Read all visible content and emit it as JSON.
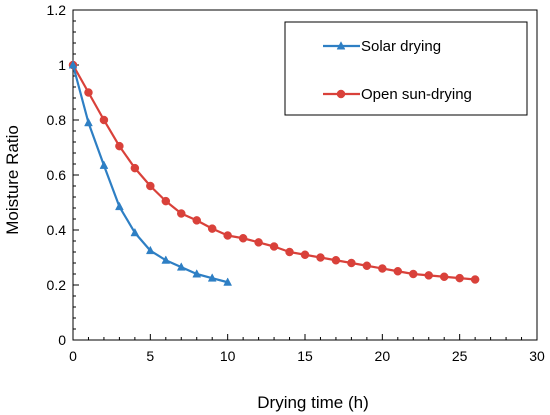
{
  "chart_data": {
    "type": "line",
    "title": "",
    "xlabel": "Drying time (h)",
    "ylabel": "Moisture Ratio",
    "xlim": [
      0,
      30
    ],
    "ylim": [
      0,
      1.2
    ],
    "xticks": [
      0,
      5,
      10,
      15,
      20,
      25,
      30
    ],
    "yticks": [
      0,
      0.2,
      0.4,
      0.6,
      0.8,
      1,
      1.2
    ],
    "xtick_labels": [
      "0",
      "5",
      "10",
      "15",
      "20",
      "25",
      "30"
    ],
    "ytick_labels": [
      "0",
      "0.2",
      "0.4",
      "0.6",
      "0.8",
      "1",
      "1.2"
    ],
    "grid": false,
    "legend_position": "top-right",
    "series": [
      {
        "name": "Solar drying",
        "color": "#2e7fc4",
        "marker": "triangle",
        "x": [
          0,
          1,
          2,
          3,
          4,
          5,
          6,
          7,
          8,
          9,
          10
        ],
        "y": [
          1.0,
          0.79,
          0.635,
          0.485,
          0.39,
          0.325,
          0.29,
          0.265,
          0.24,
          0.225,
          0.21
        ]
      },
      {
        "name": "Open sun-drying",
        "color": "#d9413a",
        "marker": "circle",
        "x": [
          0,
          1,
          2,
          3,
          4,
          5,
          6,
          7,
          8,
          9,
          10,
          11,
          12,
          13,
          14,
          15,
          16,
          17,
          18,
          19,
          20,
          21,
          22,
          23,
          24,
          25,
          26
        ],
        "y": [
          1.0,
          0.9,
          0.8,
          0.705,
          0.625,
          0.56,
          0.505,
          0.46,
          0.435,
          0.405,
          0.38,
          0.37,
          0.355,
          0.34,
          0.32,
          0.31,
          0.3,
          0.29,
          0.28,
          0.27,
          0.26,
          0.25,
          0.24,
          0.235,
          0.23,
          0.225,
          0.22
        ]
      }
    ]
  }
}
